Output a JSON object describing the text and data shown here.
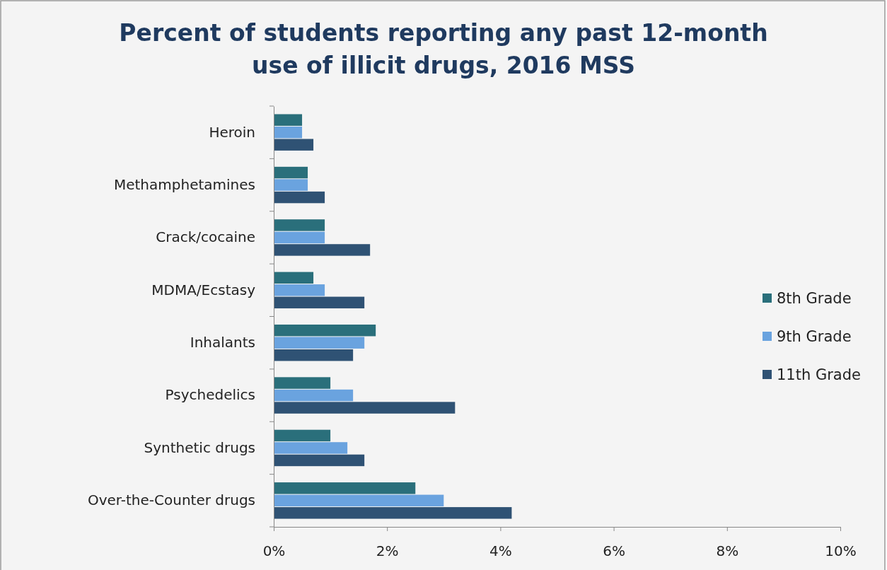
{
  "chart_data": {
    "type": "bar",
    "orientation": "horizontal",
    "title": "Percent of students reporting any past 12-month use of illicit drugs, 2016 MSS",
    "categories": [
      "Heroin",
      "Methamphetamines",
      "Crack/cocaine",
      "MDMA/Ecstasy",
      "Inhalants",
      "Psychedelics",
      "Synthetic drugs",
      "Over-the-Counter drugs"
    ],
    "series": [
      {
        "name": "8th Grade",
        "color": "#2a6f7b",
        "values": [
          0.5,
          0.6,
          0.9,
          0.7,
          1.8,
          1.0,
          1.0,
          2.5
        ]
      },
      {
        "name": "9th Grade",
        "color": "#6aa3df",
        "values": [
          0.5,
          0.6,
          0.9,
          0.9,
          1.6,
          1.4,
          1.3,
          3.0
        ]
      },
      {
        "name": "11th Grade",
        "color": "#2f5274",
        "values": [
          0.7,
          0.9,
          1.7,
          1.6,
          1.4,
          3.2,
          1.6,
          4.2
        ]
      }
    ],
    "xlim": [
      0,
      10
    ],
    "xticks": [
      {
        "value": 0,
        "label": "0%"
      },
      {
        "value": 2,
        "label": "2%"
      },
      {
        "value": 4,
        "label": "4%"
      },
      {
        "value": 6,
        "label": "6%"
      },
      {
        "value": 8,
        "label": "8%"
      },
      {
        "value": 10,
        "label": "10%"
      }
    ],
    "grid": false,
    "legend": "right"
  }
}
